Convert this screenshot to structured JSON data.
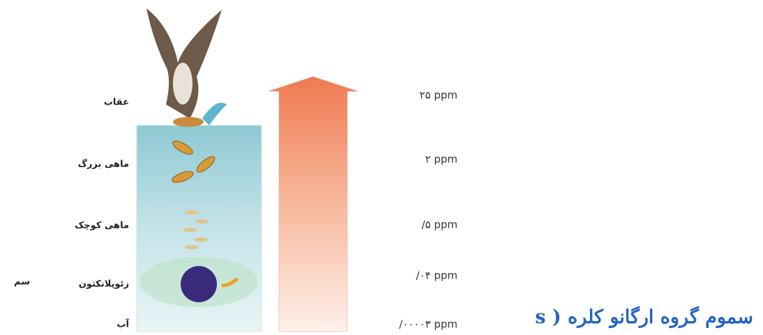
{
  "levels": [
    {
      "label": "عقاب",
      "concentration": "۲۵ ppm"
    },
    {
      "label": "ماهی بزرگ",
      "concentration": "۲ ppm"
    },
    {
      "label": "ماهی کوچک",
      "concentration": "/۵  ppm"
    },
    {
      "label": "زئوپلانکتون",
      "concentration": "/۰۴ ppm"
    },
    {
      "label": "آب",
      "concentration": "/۰۰۰۰۳  ppm"
    }
  ],
  "side_note": "سم",
  "title": "سموم گروه ارگانو کلره ( s"
}
